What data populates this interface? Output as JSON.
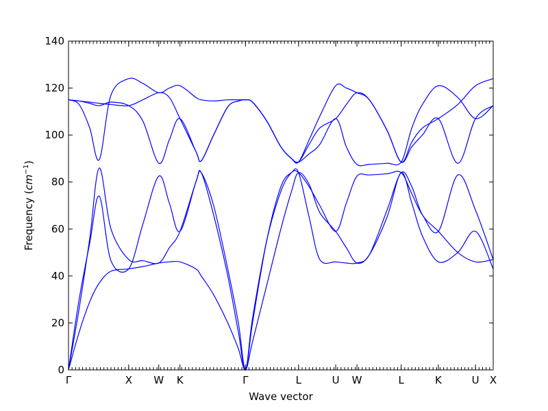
{
  "chart_data": {
    "type": "line",
    "title": "",
    "xlabel": "Wave vector",
    "ylabel_prefix": "Frequency (",
    "ylabel_math": "cm",
    "ylabel_exp": "−1",
    "ylabel_suffix": ")",
    "xlim": [
      0,
      12
    ],
    "ylim": [
      0,
      140
    ],
    "yticks": [
      0,
      20,
      40,
      60,
      80,
      100,
      120,
      140
    ],
    "xticks": [
      {
        "label": "Γ",
        "x": 0
      },
      {
        "label": "X",
        "x": 1.7
      },
      {
        "label": "W",
        "x": 2.55
      },
      {
        "label": "K",
        "x": 3.15
      },
      {
        "label": "Γ",
        "x": 5.0
      },
      {
        "label": "L",
        "x": 6.5
      },
      {
        "label": "U",
        "x": 7.55
      },
      {
        "label": "W",
        "x": 8.15
      },
      {
        "label": "L",
        "x": 9.4
      },
      {
        "label": "K",
        "x": 10.45
      },
      {
        "label": "U",
        "x": 11.5
      },
      {
        "label": "X",
        "x": 12.0
      }
    ],
    "grid": false,
    "color": "#0000ff",
    "series": [
      {
        "x": [
          0,
          0.3,
          0.6,
          0.87,
          1.2,
          1.7,
          2.1,
          2.55,
          2.85,
          3.15,
          3.6,
          3.75,
          4.1,
          4.5,
          4.8,
          5.0,
          5.2,
          5.6,
          6.0,
          6.3,
          6.5,
          6.8,
          7.1,
          7.55,
          7.85,
          8.15,
          8.5,
          9.0,
          9.4,
          9.7,
          10.0,
          10.45,
          11.0,
          11.5,
          12.0
        ],
        "values": [
          0,
          16,
          29,
          37,
          42,
          43,
          44,
          45.5,
          46,
          46,
          43,
          40,
          32,
          20,
          9,
          0,
          12,
          36,
          60,
          76,
          84,
          79,
          67,
          59,
          52,
          45.5,
          49,
          65,
          84,
          71,
          57,
          46,
          50,
          59,
          43
        ]
      },
      {
        "x": [
          0,
          0.3,
          0.6,
          0.87,
          1.2,
          1.7,
          2.1,
          2.55,
          2.85,
          3.15,
          3.6,
          3.75,
          4.1,
          4.5,
          4.8,
          5.0,
          5.2,
          5.6,
          6.0,
          6.3,
          6.5,
          6.8,
          7.1,
          7.55,
          7.85,
          8.15,
          8.5,
          9.0,
          9.4,
          9.7,
          10.0,
          10.45,
          11.0,
          11.5,
          12.0
        ],
        "values": [
          0,
          26,
          56,
          86,
          60,
          47,
          46.5,
          45.5,
          52,
          59,
          80,
          84,
          70,
          43,
          20,
          0,
          20,
          55,
          78,
          84,
          84,
          65,
          47,
          46,
          45.5,
          45.5,
          49,
          68,
          84,
          78,
          66,
          59,
          50,
          46,
          47
        ]
      },
      {
        "x": [
          0,
          0.3,
          0.6,
          0.87,
          1.2,
          1.7,
          2.1,
          2.55,
          2.85,
          3.15,
          3.6,
          3.75,
          4.1,
          4.5,
          4.8,
          5.0,
          5.2,
          5.6,
          6.0,
          6.3,
          6.5,
          6.8,
          7.1,
          7.55,
          7.85,
          8.15,
          8.5,
          9.0,
          9.4,
          9.7,
          10.0,
          10.45,
          11.0,
          11.5,
          12.0
        ],
        "values": [
          0,
          30,
          54,
          74,
          46.5,
          43,
          62,
          82.5,
          71,
          59,
          80,
          84,
          66,
          40,
          16,
          0,
          22,
          55,
          76,
          84,
          84,
          78,
          70,
          59,
          71,
          82.5,
          83,
          83.5,
          84,
          75,
          66,
          59,
          83,
          68,
          47
        ]
      },
      {
        "x": [
          0,
          0.3,
          0.6,
          0.87,
          1.2,
          1.7,
          2.1,
          2.55,
          2.85,
          3.15,
          3.6,
          3.75,
          4.1,
          4.5,
          4.8,
          5.0,
          5.2,
          5.6,
          6.0,
          6.3,
          6.5,
          6.8,
          7.1,
          7.55,
          7.85,
          8.15,
          8.5,
          9.0,
          9.4,
          9.7,
          10.0,
          10.45,
          11.0,
          11.5,
          12.0
        ],
        "values": [
          115,
          114.5,
          113.5,
          112.5,
          114,
          112.5,
          106,
          88,
          98,
          107,
          93,
          89,
          100,
          112,
          114.5,
          115,
          114,
          106,
          95,
          90,
          88.5,
          96,
          103,
          107,
          113,
          118,
          115,
          102,
          88.5,
          97,
          103,
          107,
          113,
          121,
          124
        ]
      },
      {
        "x": [
          0,
          0.3,
          0.6,
          0.87,
          1.2,
          1.7,
          2.1,
          2.55,
          2.85,
          3.15,
          3.6,
          3.75,
          4.1,
          4.5,
          4.8,
          5.0,
          5.2,
          5.6,
          6.0,
          6.3,
          6.5,
          6.8,
          7.1,
          7.55,
          7.85,
          8.15,
          8.5,
          9.0,
          9.4,
          9.7,
          10.0,
          10.45,
          11.0,
          11.5,
          12.0
        ],
        "values": [
          115,
          114.5,
          114,
          113.5,
          113,
          112.5,
          115,
          118,
          116,
          107,
          93,
          89,
          100,
          112,
          114.5,
          115,
          114,
          106,
          95,
          90,
          88.5,
          98,
          108,
          121,
          120,
          118,
          115,
          102,
          88.5,
          95,
          100,
          107,
          88,
          107,
          112.5
        ]
      },
      {
        "x": [
          0,
          0.3,
          0.6,
          0.87,
          1.2,
          1.7,
          2.1,
          2.55,
          2.85,
          3.15,
          3.6,
          3.75,
          4.1,
          4.5,
          4.8,
          5.0,
          5.2,
          5.6,
          6.0,
          6.3,
          6.5,
          6.8,
          7.1,
          7.55,
          7.85,
          8.15,
          8.5,
          9.0,
          9.4,
          9.7,
          10.0,
          10.45,
          11.0,
          11.5,
          12.0
        ],
        "values": [
          115,
          113,
          103,
          89.5,
          117,
          124,
          122,
          118,
          120,
          121,
          116,
          115,
          114.5,
          115,
          115,
          115,
          114,
          106,
          95,
          90,
          88.5,
          92,
          96,
          107,
          95,
          87.5,
          87.5,
          88,
          88.5,
          103,
          113,
          121,
          116,
          107,
          112.5
        ]
      }
    ]
  }
}
